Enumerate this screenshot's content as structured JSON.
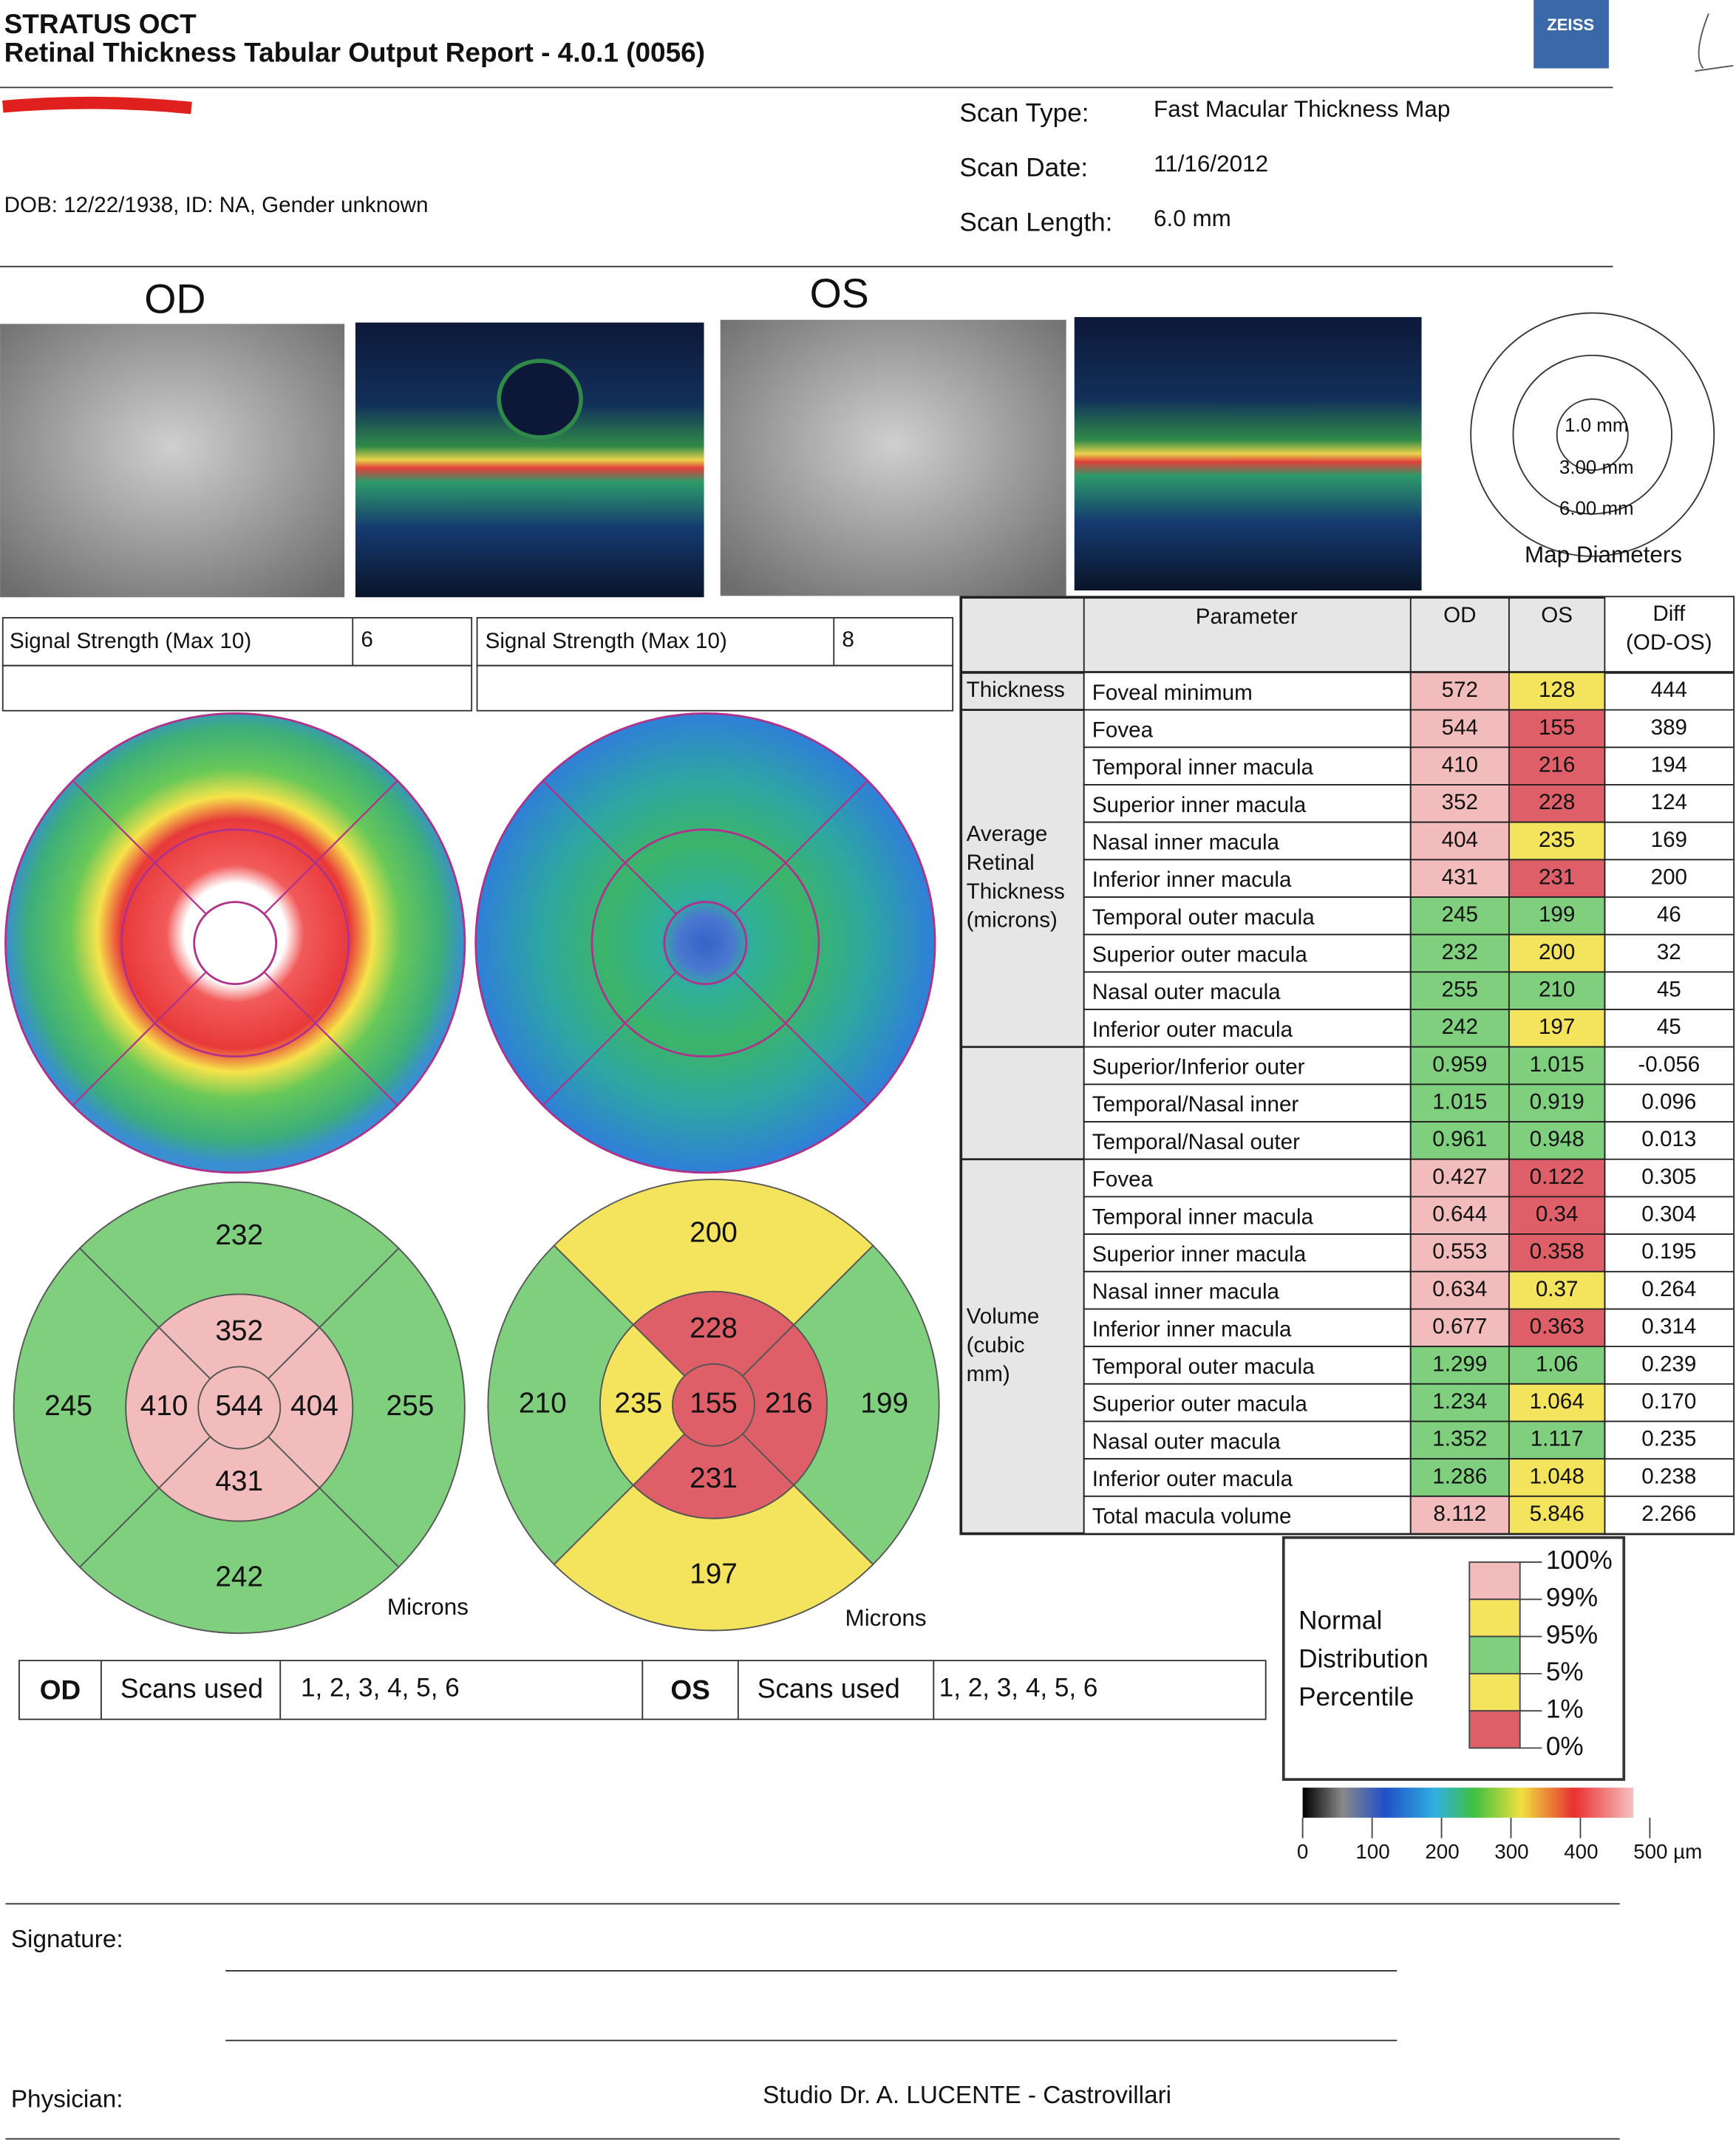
{
  "header": {
    "product": "STRATUS OCT",
    "title": "Retinal Thickness Tabular Output Report - 4.0.1 (0056)",
    "logo": "ZEISS"
  },
  "patient": {
    "dob": "DOB: 12/22/1938, ID: NA, Gender unknown"
  },
  "scan": [
    {
      "label": "Scan Type:",
      "value": "Fast Macular Thickness Map"
    },
    {
      "label": "Scan Date:",
      "value": "11/16/2012"
    },
    {
      "label": "Scan Length:",
      "value": "6.0 mm"
    }
  ],
  "eyes": {
    "od": "OD",
    "os": "OS"
  },
  "diameters": {
    "rings": [
      "1.0 mm",
      "3.00 mm",
      "6.00 mm"
    ],
    "caption": "Map Diameters"
  },
  "signal": [
    {
      "label": "Signal Strength (Max 10)",
      "value": "6"
    },
    {
      "label": "Signal Strength (Max 10)",
      "value": "8"
    }
  ],
  "palette": {
    "pink": "#f3bcbc",
    "yellow": "#f4e35c",
    "green": "#7fcf7f",
    "red": "#df5f69"
  },
  "map_units": "Microns",
  "table": {
    "header": {
      "parameter": "Parameter",
      "od": "OD",
      "os": "OS",
      "diff_lines": [
        "Diff",
        "(OD-OS)"
      ]
    },
    "groups": [
      {
        "label_lines": [
          "Thickness"
        ],
        "rows": [
          {
            "param": "Foveal minimum",
            "od": "572",
            "os": "128",
            "diff": "444",
            "od_color": "pink",
            "os_color": "yellow"
          }
        ]
      },
      {
        "label_lines": [
          "Average",
          "Retinal",
          "Thickness",
          "(microns)"
        ],
        "rows": [
          {
            "param": "Fovea",
            "od": "544",
            "os": "155",
            "diff": "389",
            "od_color": "pink",
            "os_color": "red"
          },
          {
            "param": "Temporal inner macula",
            "od": "410",
            "os": "216",
            "diff": "194",
            "od_color": "pink",
            "os_color": "red"
          },
          {
            "param": "Superior inner macula",
            "od": "352",
            "os": "228",
            "diff": "124",
            "od_color": "pink",
            "os_color": "red"
          },
          {
            "param": "Nasal inner macula",
            "od": "404",
            "os": "235",
            "diff": "169",
            "od_color": "pink",
            "os_color": "yellow"
          },
          {
            "param": "Inferior inner macula",
            "od": "431",
            "os": "231",
            "diff": "200",
            "od_color": "pink",
            "os_color": "red"
          },
          {
            "param": "Temporal outer macula",
            "od": "245",
            "os": "199",
            "diff": "46",
            "od_color": "green",
            "os_color": "green"
          },
          {
            "param": "Superior outer macula",
            "od": "232",
            "os": "200",
            "diff": "32",
            "od_color": "green",
            "os_color": "yellow"
          },
          {
            "param": "Nasal outer macula",
            "od": "255",
            "os": "210",
            "diff": "45",
            "od_color": "green",
            "os_color": "green"
          },
          {
            "param": "Inferior outer macula",
            "od": "242",
            "os": "197",
            "diff": "45",
            "od_color": "green",
            "os_color": "yellow"
          }
        ]
      },
      {
        "label_lines": [],
        "rows": [
          {
            "param": "Superior/Inferior outer",
            "od": "0.959",
            "os": "1.015",
            "diff": "-0.056",
            "od_color": "green",
            "os_color": "green"
          },
          {
            "param": "Temporal/Nasal inner",
            "od": "1.015",
            "os": "0.919",
            "diff": "0.096",
            "od_color": "green",
            "os_color": "green"
          },
          {
            "param": "Temporal/Nasal outer",
            "od": "0.961",
            "os": "0.948",
            "diff": "0.013",
            "od_color": "green",
            "os_color": "green"
          }
        ]
      },
      {
        "label_lines": [
          "Volume",
          "(cubic",
          "mm)"
        ],
        "rows": [
          {
            "param": "Fovea",
            "od": "0.427",
            "os": "0.122",
            "diff": "0.305",
            "od_color": "pink",
            "os_color": "red"
          },
          {
            "param": "Temporal inner macula",
            "od": "0.644",
            "os": "0.34",
            "diff": "0.304",
            "od_color": "pink",
            "os_color": "red"
          },
          {
            "param": "Superior inner macula",
            "od": "0.553",
            "os": "0.358",
            "diff": "0.195",
            "od_color": "pink",
            "os_color": "red"
          },
          {
            "param": "Nasal inner macula",
            "od": "0.634",
            "os": "0.37",
            "diff": "0.264",
            "od_color": "pink",
            "os_color": "yellow"
          },
          {
            "param": "Inferior inner macula",
            "od": "0.677",
            "os": "0.363",
            "diff": "0.314",
            "od_color": "pink",
            "os_color": "red"
          },
          {
            "param": "Temporal outer macula",
            "od": "1.299",
            "os": "1.06",
            "diff": "0.239",
            "od_color": "green",
            "os_color": "green"
          },
          {
            "param": "Superior outer macula",
            "od": "1.234",
            "os": "1.064",
            "diff": "0.170",
            "od_color": "green",
            "os_color": "yellow"
          },
          {
            "param": "Nasal outer macula",
            "od": "1.352",
            "os": "1.117",
            "diff": "0.235",
            "od_color": "green",
            "os_color": "green"
          },
          {
            "param": "Inferior outer macula",
            "od": "1.286",
            "os": "1.048",
            "diff": "0.238",
            "od_color": "green",
            "os_color": "yellow"
          },
          {
            "param": "Total macula volume",
            "od": "8.112",
            "os": "5.846",
            "diff": "2.266",
            "od_color": "pink",
            "os_color": "yellow"
          }
        ]
      }
    ]
  },
  "legend": {
    "title_lines": [
      "Normal",
      "Distribution",
      "Percentile"
    ],
    "percentiles": [
      "100%",
      "99%",
      "95%",
      "5%",
      "1%",
      "0%"
    ],
    "bands": [
      "pink",
      "yellow",
      "green",
      "yellow",
      "red"
    ]
  },
  "colorbar": {
    "ticks": [
      "0",
      "100",
      "200",
      "300",
      "400",
      "500 µm"
    ]
  },
  "scans_used": [
    {
      "eye": "OD",
      "label": "Scans used",
      "value": "1, 2, 3, 4, 5, 6"
    },
    {
      "eye": "OS",
      "label": "Scans used",
      "value": "1, 2, 3, 4, 5, 6"
    }
  ],
  "footer": {
    "signature": "Signature:",
    "physician": "Physician:",
    "studio": "Studio Dr. A. LUCENTE - Castrovillari"
  }
}
